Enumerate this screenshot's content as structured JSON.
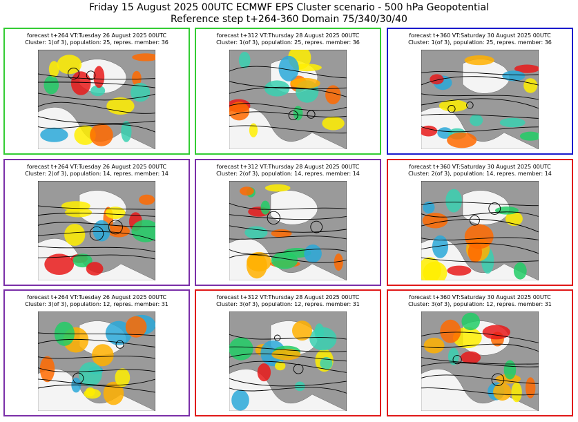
{
  "header": {
    "title": "Friday 15 August 2025 00UTC ECMWF EPS Cluster scenario - 500 hPa Geopotential",
    "subtitle": "Reference step t+264-360 Domain 75/340/30/40"
  },
  "colors": {
    "green": "#33cc33",
    "blue": "#1a1acc",
    "purple": "#7a2ea8",
    "red": "#e01818"
  },
  "panels": [
    {
      "line1": "forecast t+264 VT:Tuesday 26 August 2025 00UTC",
      "line2": "Cluster: 1(of 3), population: 25, repres. member: 36",
      "border": "#33cc33"
    },
    {
      "line1": "forecast t+312 VT:Thursday 28 August 2025 00UTC",
      "line2": "Cluster: 1(of 3), population: 25, repres. member: 36",
      "border": "#33cc33"
    },
    {
      "line1": "forecast t+360 VT:Saturday 30 August 2025 00UTC",
      "line2": "Cluster: 1(of 3), population: 25, repres. member: 36",
      "border": "#1a1acc"
    },
    {
      "line1": "forecast t+264 VT:Tuesday 26 August 2025 00UTC",
      "line2": "Cluster: 2(of 3), population: 14, repres. member: 14",
      "border": "#7a2ea8"
    },
    {
      "line1": "forecast t+312 VT:Thursday 28 August 2025 00UTC",
      "line2": "Cluster: 2(of 3), population: 14, repres. member: 14",
      "border": "#7a2ea8"
    },
    {
      "line1": "forecast t+360 VT:Saturday 30 August 2025 00UTC",
      "line2": "Cluster: 2(of 3), population: 14, repres. member: 14",
      "border": "#e01818"
    },
    {
      "line1": "forecast t+264 VT:Tuesday 26 August 2025 00UTC",
      "line2": "Cluster: 3(of 3), population: 12, repres. member: 31",
      "border": "#7a2ea8"
    },
    {
      "line1": "forecast t+312 VT:Thursday 28 August 2025 00UTC",
      "line2": "Cluster: 3(of 3), population: 12, repres. member: 31",
      "border": "#e01818"
    },
    {
      "line1": "forecast t+360 VT:Saturday 30 August 2025 00UTC",
      "line2": "Cluster: 3(of 3), population: 12, repres. member: 31",
      "border": "#e01818"
    }
  ]
}
